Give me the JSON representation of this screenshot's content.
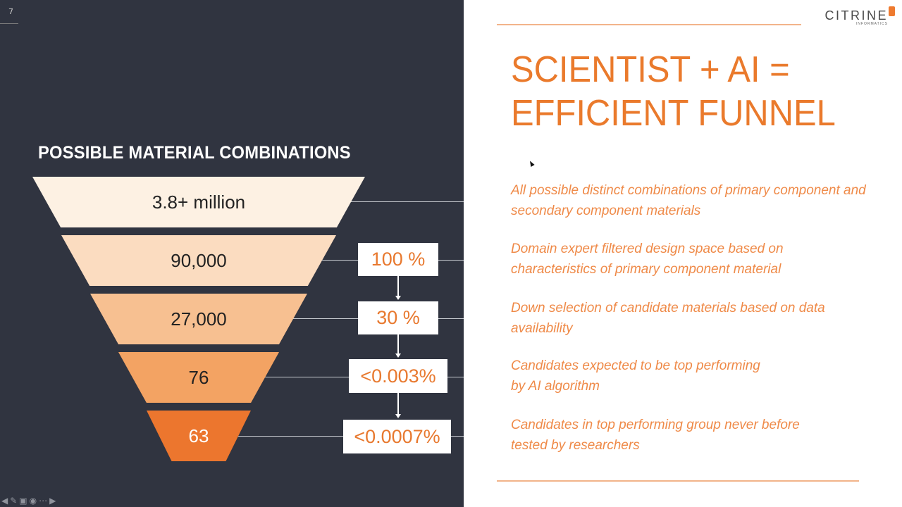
{
  "slide": {
    "number": "7"
  },
  "funnel": {
    "title": "POSSIBLE MATERIAL COMBINATIONS",
    "tiers": [
      {
        "label": "3.8+ million",
        "color": "#fdf1e3"
      },
      {
        "label": "90,000",
        "color": "#fbdcc0"
      },
      {
        "label": "27,000",
        "color": "#f7c091"
      },
      {
        "label": "76",
        "color": "#f3a363"
      },
      {
        "label": "63",
        "color": "#ec762e"
      }
    ],
    "percentages": [
      "100 %",
      "30 %",
      "<0.003%",
      "<0.0007%"
    ]
  },
  "brand": {
    "name": "CITRINE",
    "sub": "INFORMATICS",
    "accent": "#ea7a2c"
  },
  "headline": {
    "line1": "SCIENTIST + AI =",
    "line2": "EFFICIENT FUNNEL"
  },
  "descriptions": [
    {
      "line1": "All possible distinct combinations of primary component  and",
      "line2": "secondary component materials"
    },
    {
      "line1": "Domain expert filtered design space based on",
      "line2": "characteristics of primary component material"
    },
    {
      "line1": "Down selection of candidate materials based on data",
      "line2": "availability"
    },
    {
      "line1": "Candidates expected to be top performing",
      "line2": "by AI algorithm"
    },
    {
      "line1": "Candidates in top performing group never before",
      "line2": "tested by researchers"
    }
  ]
}
